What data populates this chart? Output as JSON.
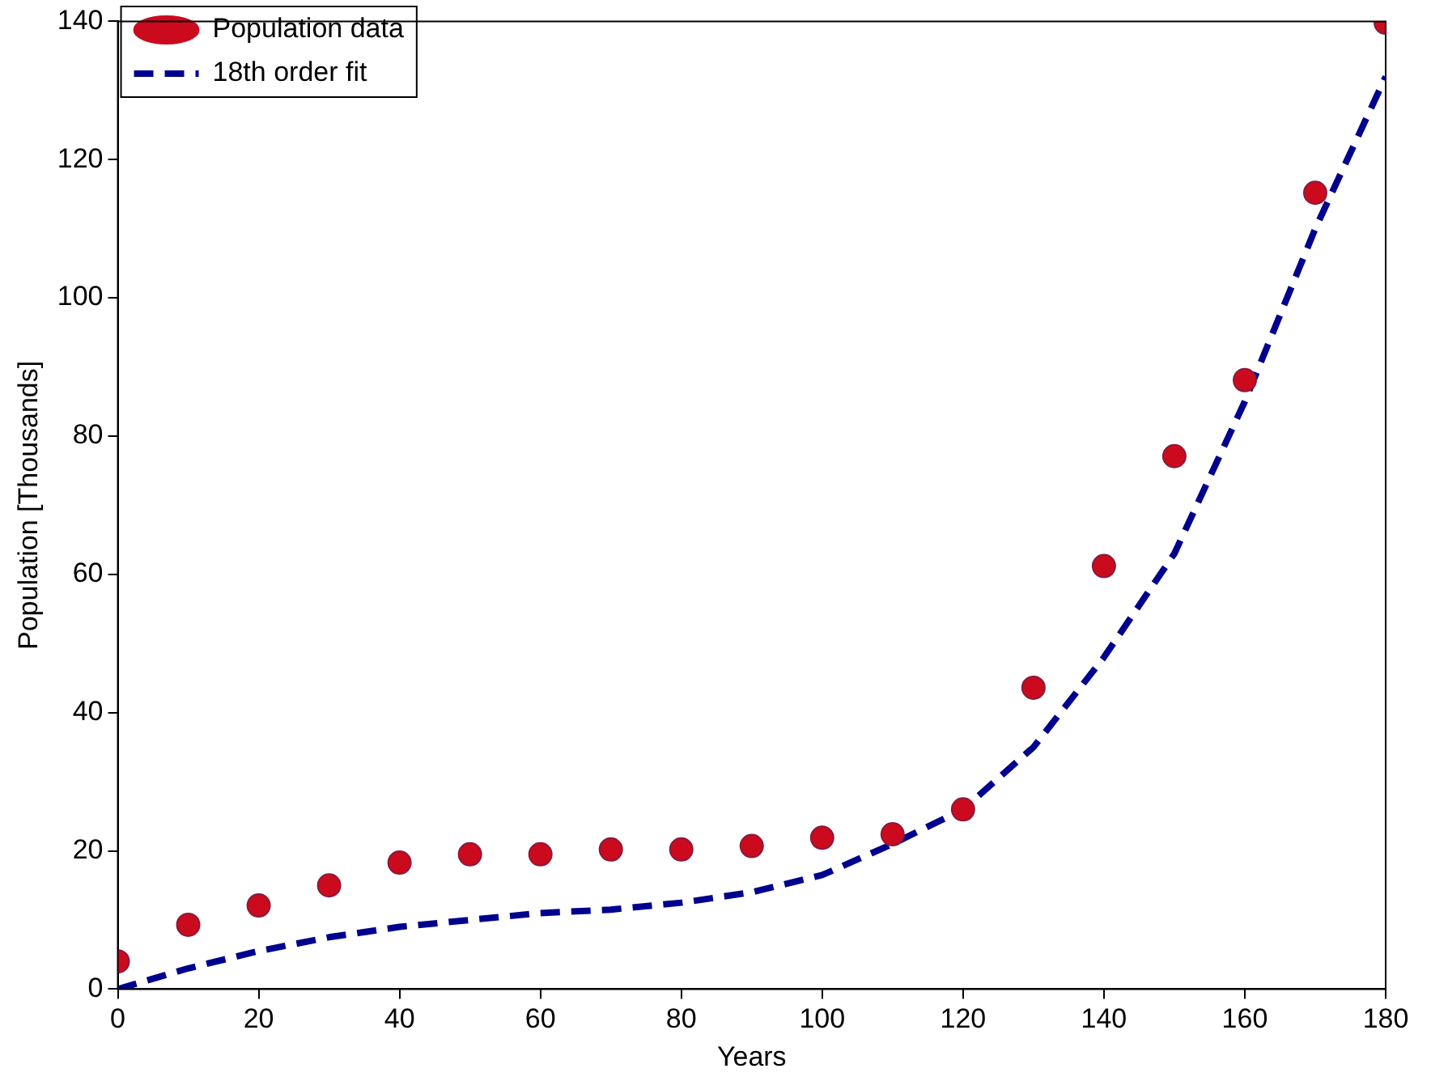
{
  "chart_data": {
    "type": "scatter",
    "xlabel": "Years",
    "ylabel": "Population [Thousands]",
    "xlim": [
      0,
      180
    ],
    "xticks": [
      0,
      20,
      40,
      60,
      80,
      100,
      120,
      140,
      160,
      180
    ],
    "ylim": [
      0,
      140
    ],
    "yticks": [
      0,
      20,
      40,
      60,
      80,
      100,
      120,
      140
    ],
    "grid": false,
    "legend": "top left",
    "series": [
      {
        "name": "Population data",
        "marker": "circle",
        "color": "#cc0a1e",
        "x": [
          0,
          10,
          20,
          30,
          40,
          50,
          60,
          70,
          80,
          90,
          100,
          110,
          120,
          130,
          140,
          150,
          160,
          170,
          180
        ],
        "values": [
          4.0,
          9.3,
          12.1,
          15.0,
          18.3,
          19.5,
          19.5,
          20.2,
          20.2,
          20.7,
          21.9,
          22.4,
          26.0,
          43.6,
          61.2,
          77.1,
          88.1,
          115.2,
          139.8
        ]
      },
      {
        "name": "18th order fit",
        "type": "line",
        "marker": "none",
        "line_style": "dashed",
        "color": "#00008f",
        "x": [
          0,
          10,
          20,
          30,
          40,
          50,
          60,
          70,
          80,
          90,
          100,
          110,
          120,
          130,
          140,
          150,
          160,
          170,
          180
        ],
        "values": [
          0,
          3.0,
          5.5,
          7.5,
          9.0,
          10.0,
          11.0,
          11.5,
          12.5,
          14.0,
          16.5,
          21.0,
          26.0,
          35.0,
          48.0,
          63.0,
          85.0,
          110.0,
          132.0
        ]
      }
    ]
  }
}
